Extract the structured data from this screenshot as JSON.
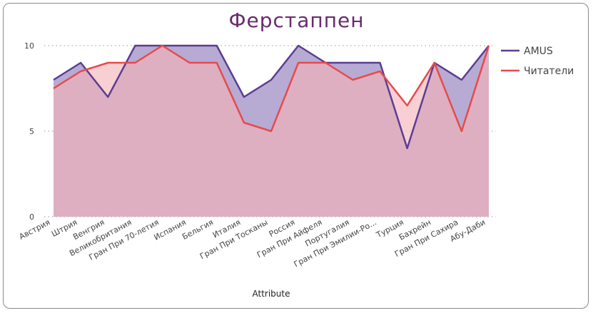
{
  "chart_data": {
    "type": "area",
    "title": "Ферстаппен",
    "xlabel": "Attribute",
    "ylabel": "",
    "ylim": [
      0,
      10
    ],
    "yticks": [
      0,
      5,
      10
    ],
    "grid": "horizontal-dotted",
    "legend_position": "right",
    "categories": [
      "Австрия",
      "Штрия",
      "Венгрия",
      "Великобритания",
      "Гран При 70-летия",
      "Испания",
      "Бельгия",
      "Италия",
      "Гран При Тосканы",
      "Россия",
      "Гран При Айфеля",
      "Португалия",
      "Гран При Эмилии-Ро...",
      "Турция",
      "Бахрейн",
      "Гран При Сахира",
      "Абу-Даби"
    ],
    "series": [
      {
        "name": "AMUS",
        "color": "#5b3d94",
        "fill": "#b7abd3",
        "values": [
          8,
          9,
          7,
          10,
          10,
          10,
          10,
          7,
          8,
          10,
          9,
          9,
          9,
          4,
          9,
          8,
          10
        ]
      },
      {
        "name": "Читатели",
        "color": "#e84a4a",
        "fill": "#f4b2b6",
        "values": [
          7.5,
          8.5,
          9,
          9,
          10,
          9,
          9,
          5.5,
          5,
          9,
          9,
          8,
          8.5,
          6.5,
          9,
          5,
          10
        ]
      }
    ]
  }
}
